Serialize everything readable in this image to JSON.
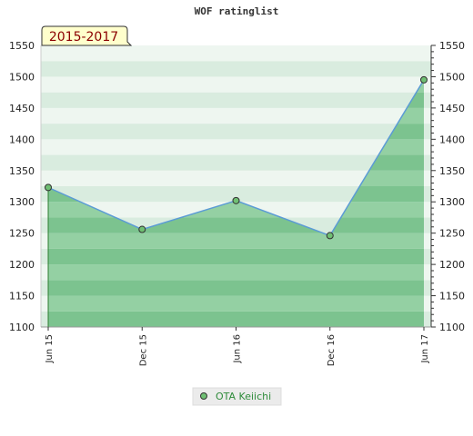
{
  "chart_data": {
    "type": "area",
    "title": "WOF ratinglist",
    "period_label": "2015-2017",
    "categories": [
      "Jun 15",
      "Dec 15",
      "Jun 16",
      "Dec 16",
      "Jun 17"
    ],
    "series": [
      {
        "name": "OTA Keiichi",
        "values": [
          1323,
          1256,
          1302,
          1246,
          1495
        ]
      }
    ],
    "ylim": [
      1100,
      1550
    ],
    "yticks": [
      1100,
      1150,
      1200,
      1250,
      1300,
      1350,
      1400,
      1450,
      1500,
      1550
    ],
    "grid": "horizontal bands",
    "legend_position": "bottom-center",
    "colors": {
      "line": "#5b9bd5",
      "fill": "#5cb26a",
      "marker": "#6fbf73",
      "period_bg": "#ffffcc"
    }
  }
}
